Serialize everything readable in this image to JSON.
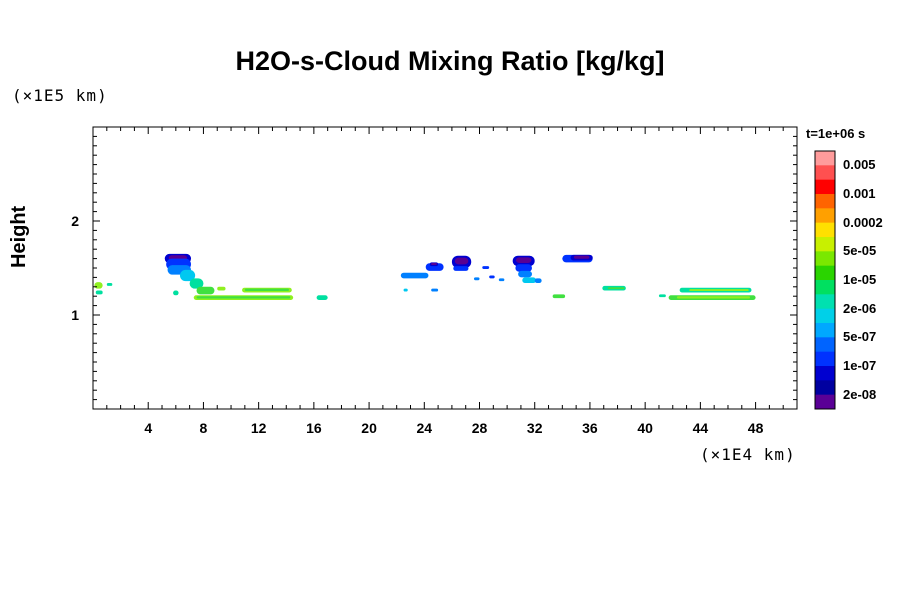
{
  "chart_data": {
    "type": "heatmap",
    "title": "H2O-s-Cloud Mixing Ratio [kg/kg]",
    "ylabel": "Height",
    "y_scale": "(×1E5 km)",
    "x_scale": "(×1E4 km)",
    "xlim": [
      0,
      51
    ],
    "ylim": [
      0,
      3
    ],
    "x_ticks": [
      "4",
      "8",
      "12",
      "16",
      "20",
      "24",
      "28",
      "32",
      "36",
      "40",
      "44",
      "48"
    ],
    "y_ticks": [
      "1",
      "2"
    ],
    "time_label": "t=1e+06 s",
    "legend_labels": [
      "0.005",
      "0.001",
      "0.0002",
      "5e-05",
      "1e-05",
      "2e-06",
      "5e-07",
      "1e-07",
      "2e-08"
    ],
    "colorbar_colors": [
      "#ff9b9b",
      "#ff5050",
      "#ff0000",
      "#ff6400",
      "#ffa000",
      "#ffe000",
      "#c8f000",
      "#7ae800",
      "#2ad400",
      "#00e060",
      "#00e0b0",
      "#00d0e8",
      "#00a8ff",
      "#0064ff",
      "#0032ff",
      "#0000d0",
      "#0000a0",
      "#5a0096"
    ],
    "features": [
      {
        "x": 0.1,
        "w": 0.6,
        "y": 1.28,
        "h": 0.07,
        "level": 6
      },
      {
        "x": 0.2,
        "w": 0.5,
        "y": 1.22,
        "h": 0.04,
        "level": 4
      },
      {
        "x": 1.0,
        "w": 0.4,
        "y": 1.31,
        "h": 0.03,
        "level": 4
      },
      {
        "x": 5.2,
        "w": 1.9,
        "y": 1.55,
        "h": 0.1,
        "level": 0
      },
      {
        "x": 5.3,
        "w": 1.8,
        "y": 1.48,
        "h": 0.12,
        "level": 1
      },
      {
        "x": 5.4,
        "w": 1.7,
        "y": 1.43,
        "h": 0.1,
        "level": 2
      },
      {
        "x": 6.3,
        "w": 1.1,
        "y": 1.36,
        "h": 0.12,
        "level": 3
      },
      {
        "x": 7.0,
        "w": 1.0,
        "y": 1.28,
        "h": 0.11,
        "level": 4
      },
      {
        "x": 7.5,
        "w": 1.3,
        "y": 1.22,
        "h": 0.08,
        "level": 5
      },
      {
        "x": 5.8,
        "w": 0.4,
        "y": 1.21,
        "h": 0.05,
        "level": 4
      },
      {
        "x": 7.3,
        "w": 7.2,
        "y": 1.16,
        "h": 0.05,
        "level": 6
      },
      {
        "x": 7.5,
        "w": 6.8,
        "y": 1.175,
        "h": 0.025,
        "level": 5
      },
      {
        "x": 10.8,
        "w": 3.6,
        "y": 1.24,
        "h": 0.05,
        "level": 6
      },
      {
        "x": 11.0,
        "w": 3.2,
        "y": 1.255,
        "h": 0.025,
        "level": 5
      },
      {
        "x": 9.0,
        "w": 0.6,
        "y": 1.26,
        "h": 0.04,
        "level": 6
      },
      {
        "x": 16.2,
        "w": 0.8,
        "y": 1.16,
        "h": 0.05,
        "level": 4
      },
      {
        "x": 22.3,
        "w": 2.0,
        "y": 1.39,
        "h": 0.06,
        "level": 2
      },
      {
        "x": 24.1,
        "w": 1.3,
        "y": 1.47,
        "h": 0.08,
        "level": 1
      },
      {
        "x": 24.4,
        "w": 0.6,
        "y": 1.52,
        "h": 0.04,
        "level": 0
      },
      {
        "x": 26.0,
        "w": 1.4,
        "y": 1.5,
        "h": 0.13,
        "level": 0
      },
      {
        "x": 26.1,
        "w": 1.1,
        "y": 1.47,
        "h": 0.05,
        "level": 1
      },
      {
        "x": 28.2,
        "w": 0.5,
        "y": 1.49,
        "h": 0.03,
        "level": 1
      },
      {
        "x": 27.6,
        "w": 0.4,
        "y": 1.37,
        "h": 0.03,
        "level": 2
      },
      {
        "x": 28.7,
        "w": 0.4,
        "y": 1.39,
        "h": 0.03,
        "level": 1
      },
      {
        "x": 29.4,
        "w": 0.4,
        "y": 1.36,
        "h": 0.03,
        "level": 2
      },
      {
        "x": 24.5,
        "w": 0.5,
        "y": 1.25,
        "h": 0.03,
        "level": 2
      },
      {
        "x": 22.5,
        "w": 0.3,
        "y": 1.25,
        "h": 0.03,
        "level": 3
      },
      {
        "x": 30.4,
        "w": 1.6,
        "y": 1.52,
        "h": 0.11,
        "level": 0
      },
      {
        "x": 30.6,
        "w": 1.2,
        "y": 1.46,
        "h": 0.08,
        "level": 1
      },
      {
        "x": 30.8,
        "w": 1.0,
        "y": 1.4,
        "h": 0.07,
        "level": 2
      },
      {
        "x": 31.1,
        "w": 1.0,
        "y": 1.34,
        "h": 0.06,
        "level": 3
      },
      {
        "x": 32.0,
        "w": 0.5,
        "y": 1.34,
        "h": 0.05,
        "level": 2
      },
      {
        "x": 33.3,
        "w": 0.9,
        "y": 1.18,
        "h": 0.04,
        "level": 5
      },
      {
        "x": 34.0,
        "w": 2.2,
        "y": 1.56,
        "h": 0.08,
        "level": 1
      },
      {
        "x": 34.6,
        "w": 1.6,
        "y": 1.58,
        "h": 0.06,
        "level": 0
      },
      {
        "x": 36.9,
        "w": 1.7,
        "y": 1.26,
        "h": 0.05,
        "level": 4
      },
      {
        "x": 37.3,
        "w": 1.2,
        "y": 1.275,
        "h": 0.02,
        "level": 5
      },
      {
        "x": 41.7,
        "w": 6.3,
        "y": 1.16,
        "h": 0.05,
        "level": 5
      },
      {
        "x": 42.3,
        "w": 5.3,
        "y": 1.175,
        "h": 0.025,
        "level": 6
      },
      {
        "x": 42.5,
        "w": 5.2,
        "y": 1.24,
        "h": 0.05,
        "level": 4
      },
      {
        "x": 43.2,
        "w": 4.3,
        "y": 1.255,
        "h": 0.02,
        "level": 6
      },
      {
        "x": 41.0,
        "w": 0.5,
        "y": 1.19,
        "h": 0.03,
        "level": 4
      }
    ]
  }
}
